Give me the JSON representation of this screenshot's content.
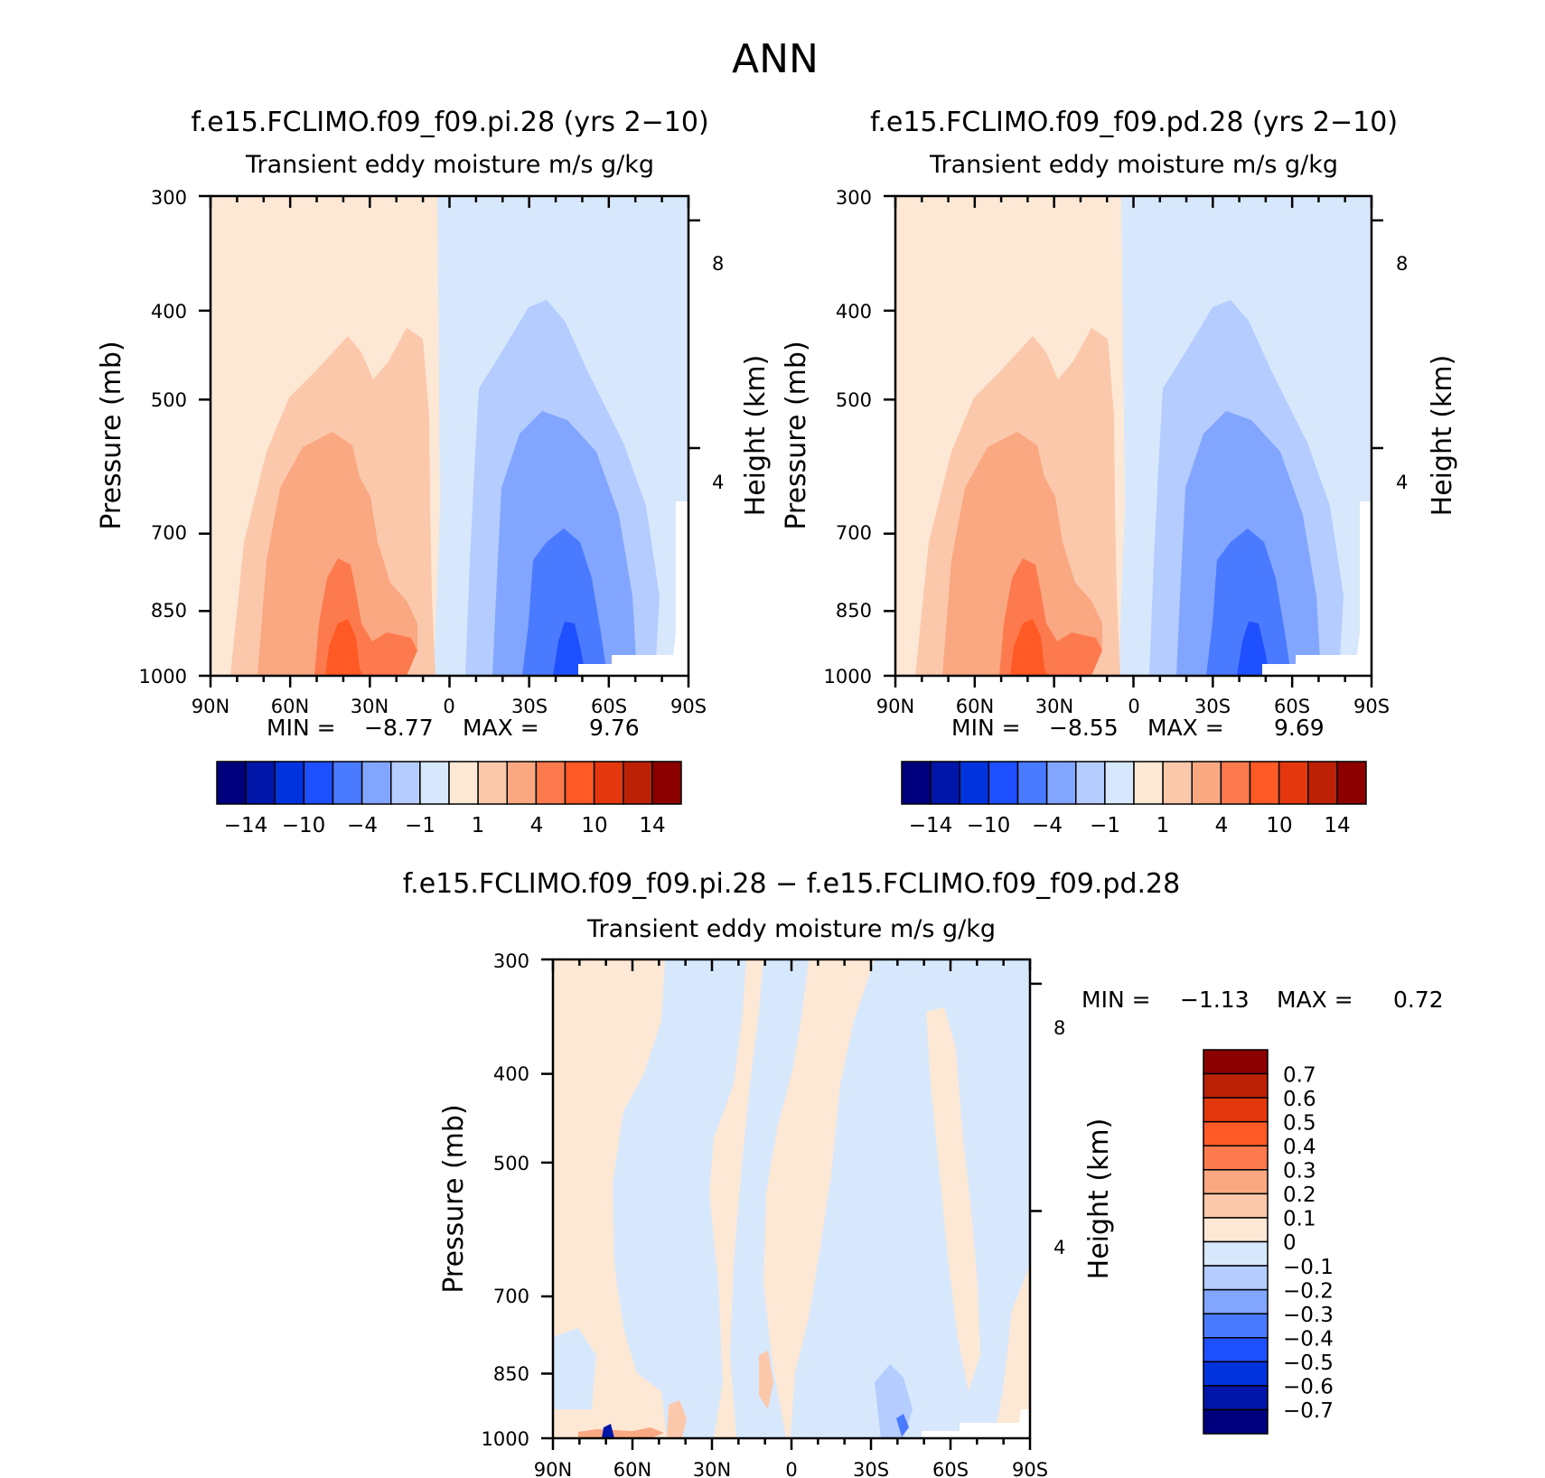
{
  "figure_title": "ANN",
  "chart_data": [
    {
      "type": "heatmap",
      "panel": "left",
      "title": "f.e15.FCLIMO.f09_f09.pi.28 (yrs 2−10)",
      "subtitle": "Transient eddy moisture m/s g/kg",
      "ylabel": "Pressure (mb)",
      "y2label": "Height (km)",
      "x_ticks": [
        "90N",
        "60N",
        "30N",
        "0",
        "30S",
        "60S",
        "90S"
      ],
      "y_ticks": [
        "300",
        "400",
        "500",
        "700",
        "850",
        "1000"
      ],
      "y2_ticks": [
        "8",
        "4"
      ],
      "stats": {
        "min_label": "MIN =",
        "min": "−8.77",
        "max_label": "MAX =",
        "max": "9.76"
      },
      "colorbar_labels": [
        "−14",
        "−10",
        "−4",
        "−1",
        "1",
        "4",
        "10",
        "14"
      ],
      "features": [
        {
          "name": "nh-moist-positive-cell",
          "lat_center": 40,
          "lat_span": [
            85,
            2
          ],
          "top_mb": 440,
          "peak_level": 6
        },
        {
          "name": "sh-moist-negative-cell",
          "lat_center": -37,
          "lat_span": [
            -2,
            -82
          ],
          "top_mb": 390,
          "peak_level": -5
        }
      ]
    },
    {
      "type": "heatmap",
      "panel": "right",
      "title": "f.e15.FCLIMO.f09_f09.pd.28 (yrs 2−10)",
      "subtitle": "Transient eddy moisture m/s g/kg",
      "ylabel": "Pressure (mb)",
      "y2label": "Height (km)",
      "x_ticks": [
        "90N",
        "60N",
        "30N",
        "0",
        "30S",
        "60S",
        "90S"
      ],
      "y_ticks": [
        "300",
        "400",
        "500",
        "700",
        "850",
        "1000"
      ],
      "y2_ticks": [
        "8",
        "4"
      ],
      "stats": {
        "min_label": "MIN =",
        "min": "−8.55",
        "max_label": "MAX =",
        "max": "9.69"
      },
      "colorbar_labels": [
        "−14",
        "−10",
        "−4",
        "−1",
        "1",
        "4",
        "10",
        "14"
      ],
      "features": [
        {
          "name": "nh-moist-positive-cell",
          "lat_center": 40,
          "lat_span": [
            85,
            2
          ],
          "top_mb": 440,
          "peak_level": 6
        },
        {
          "name": "sh-moist-negative-cell",
          "lat_center": -37,
          "lat_span": [
            -2,
            -82
          ],
          "top_mb": 390,
          "peak_level": -5
        }
      ]
    },
    {
      "type": "heatmap",
      "panel": "difference",
      "title": "f.e15.FCLIMO.f09_f09.pi.28 − f.e15.FCLIMO.f09_f09.pd.28",
      "subtitle": "Transient eddy moisture m/s g/kg",
      "ylabel": "Pressure (mb)",
      "y2label": "Height (km)",
      "x_ticks": [
        "90N",
        "60N",
        "30N",
        "0",
        "30S",
        "60S",
        "90S"
      ],
      "y_ticks": [
        "300",
        "400",
        "500",
        "700",
        "850",
        "1000"
      ],
      "y2_ticks": [
        "8",
        "4"
      ],
      "stats": {
        "min_label": "MIN =",
        "min": "−1.13",
        "max_label": "MAX =",
        "max": "0.72"
      },
      "colorbar_labels": [
        "0.7",
        "0.6",
        "0.5",
        "0.4",
        "0.3",
        "0.2",
        "0.1",
        "0",
        "−0.1",
        "−0.2",
        "−0.3",
        "−0.4",
        "−0.5",
        "−0.6",
        "−0.7"
      ]
    }
  ],
  "colors": {
    "palette": [
      "#00007f",
      "#0016a8",
      "#0032de",
      "#1e50ff",
      "#4a7aff",
      "#82a6ff",
      "#b4ccff",
      "#d8e8fc",
      "#fde8d6",
      "#fbc8ab",
      "#faa882",
      "#fd7a4e",
      "#ff5a26",
      "#e4370d",
      "#bc2106",
      "#8c0000"
    ]
  }
}
